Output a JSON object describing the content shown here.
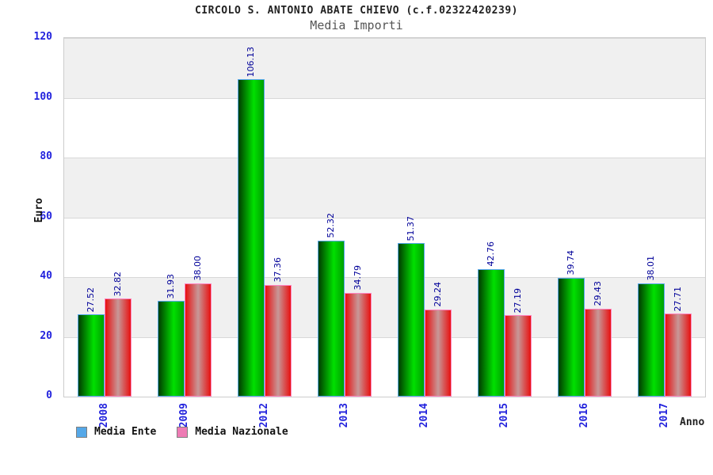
{
  "header": {
    "title": "CIRCOLO S. ANTONIO ABATE CHIEVO (c.f.02322420239)",
    "subtitle": "Media Importi"
  },
  "colors": {
    "tick_label": "#2222dd",
    "value_label": "#000099",
    "band_gray": "#f0f0f0",
    "band_white": "#ffffff",
    "grid_line": "#d8d8d8",
    "plot_border": "#cccccc"
  },
  "chart_data": {
    "type": "bar",
    "title": "CIRCOLO S. ANTONIO ABATE CHIEVO (c.f.02322420239)",
    "subtitle": "Media Importi",
    "xlabel": "Anno",
    "ylabel": "Euro",
    "ylim": [
      0,
      120
    ],
    "ytick_step": 20,
    "grid": "horizontal-bands-alternating",
    "legend_position": "bottom-left",
    "value_label_format": "2-decimals-rotated-90ccw",
    "categories": [
      "2008",
      "2009",
      "2012",
      "2013",
      "2014",
      "2015",
      "2016",
      "2017"
    ],
    "series": [
      {
        "name": "Media Ente",
        "swatch_color": "#55a8e8",
        "border_color": "#58a8ee",
        "gradient_stops": [
          [
            0,
            "#003c00"
          ],
          [
            60,
            "#00e000"
          ],
          [
            100,
            "#00a000"
          ]
        ],
        "values": [
          27.52,
          31.93,
          106.13,
          52.32,
          51.37,
          42.76,
          39.74,
          38.01
        ]
      },
      {
        "name": "Media Nazionale",
        "swatch_color": "#ee7bb4",
        "border_color": "#ff85c2",
        "gradient_stops": [
          [
            0,
            "#e81010"
          ],
          [
            50,
            "#c79898"
          ],
          [
            100,
            "#e81010"
          ]
        ],
        "values": [
          32.82,
          38.0,
          37.36,
          34.79,
          29.24,
          27.19,
          29.43,
          27.71
        ]
      }
    ]
  }
}
